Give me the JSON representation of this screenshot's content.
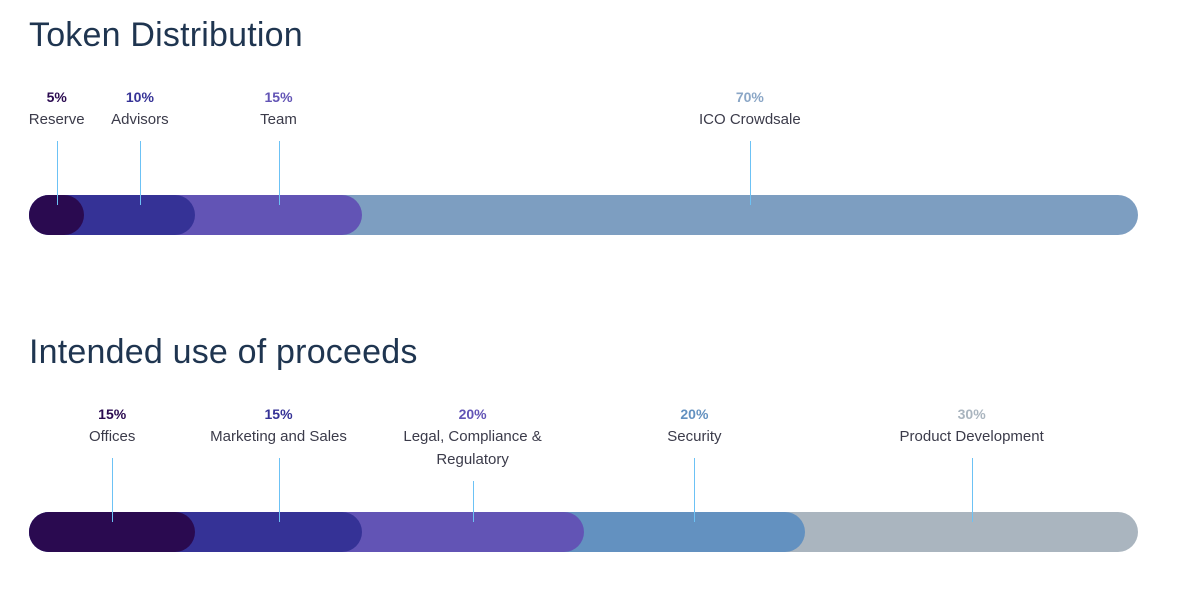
{
  "chart_data": [
    {
      "type": "bar",
      "subtype": "stacked-horizontal-percent",
      "title": "Token Distribution",
      "categories": [
        "Reserve",
        "Advisors",
        "Team",
        "ICO Crowdsale"
      ],
      "values": [
        5,
        10,
        15,
        70
      ],
      "labels": [
        "5%",
        "10%",
        "15%",
        "70%"
      ],
      "colors": [
        "#2a0a50",
        "#353296",
        "#6254b5",
        "#7d9ec1"
      ],
      "pct_colors": [
        "#2a0a50",
        "#353296",
        "#6254b5",
        "#8aa6c6"
      ]
    },
    {
      "type": "bar",
      "subtype": "stacked-horizontal-percent",
      "title": "Intended use of proceeds",
      "categories": [
        "Offices",
        "Marketing and Sales",
        "Legal, Compliance & Regulatory",
        "Security",
        "Product Development"
      ],
      "values": [
        15,
        15,
        20,
        20,
        30
      ],
      "labels": [
        "15%",
        "15%",
        "20%",
        "20%",
        "30%"
      ],
      "colors": [
        "#2a0a50",
        "#353296",
        "#6254b5",
        "#6391c0",
        "#aab5bf"
      ],
      "pct_colors": [
        "#2a0a50",
        "#353296",
        "#6254b5",
        "#6391c0",
        "#aab5bf"
      ]
    }
  ]
}
